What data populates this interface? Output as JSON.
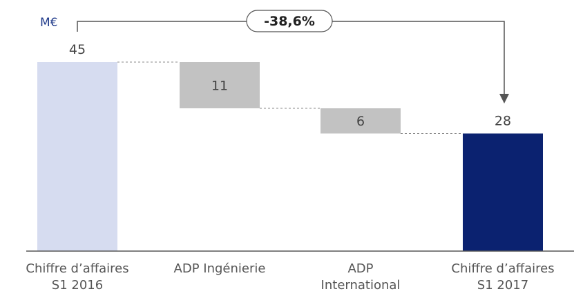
{
  "chart_data": {
    "type": "waterfall",
    "unit_label": "M€",
    "categories": [
      [
        "Chiffre d’affaires",
        "S1 2016"
      ],
      [
        "ADP Ingénierie"
      ],
      [
        "ADP",
        "International"
      ],
      [
        "Chiffre d’affaires",
        "S1 2017"
      ]
    ],
    "values": [
      45,
      -11,
      -6,
      28
    ],
    "labels": [
      "45",
      "11",
      "6",
      "28"
    ],
    "kinds": [
      "total",
      "delta",
      "delta",
      "total"
    ],
    "change_label": "-38,6%",
    "colors": {
      "start": "#d6dcf0",
      "delta": "#c2c2c2",
      "end": "#0b2270",
      "connector": "#888888",
      "axis": "#555555",
      "arrow": "#555555"
    },
    "ylim": [
      0,
      45
    ]
  }
}
